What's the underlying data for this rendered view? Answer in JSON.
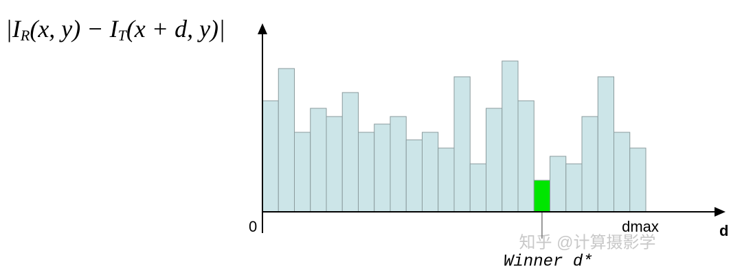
{
  "chart_data": {
    "type": "bar",
    "y_label": [
      "|I",
      "R",
      "(x, y) − I",
      "T",
      "(x + d, y)|"
    ],
    "x_label": "d",
    "origin_label": "0",
    "end_label": "dmax",
    "annotation": "Winner d*",
    "watermark": "知乎 @计算摄影学",
    "values": [
      162,
      209,
      116,
      151,
      139,
      174,
      116,
      128,
      139,
      105,
      116,
      93,
      197,
      70,
      151,
      220,
      162,
      46,
      81,
      70,
      139,
      197,
      116,
      93
    ],
    "color": "#cce5e8",
    "highlight": {
      "index": 17,
      "color": "#00e600"
    },
    "ylim": [
      0,
      274
    ]
  }
}
